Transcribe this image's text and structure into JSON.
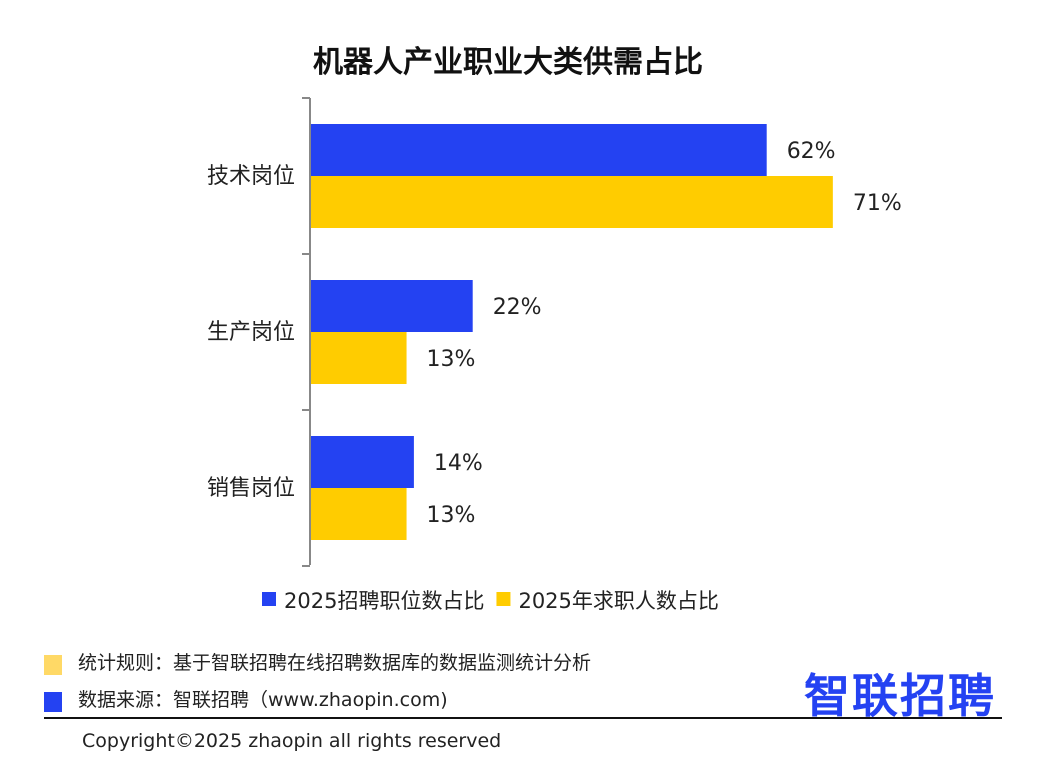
{
  "chart_data": {
    "type": "bar",
    "orientation": "horizontal",
    "title": "机器人产业职业大类供需占比",
    "categories": [
      "技术岗位",
      "生产岗位",
      "销售岗位"
    ],
    "series": [
      {
        "name": "2025招聘职位数占比",
        "values": [
          62,
          22,
          14
        ],
        "labels": [
          "62%",
          "22%",
          "14%"
        ],
        "color": "#2442F2"
      },
      {
        "name": "2025年求职人数占比",
        "values": [
          71,
          13,
          13
        ],
        "labels": [
          "71%",
          "13%",
          "13%"
        ],
        "color": "#FFCC00"
      }
    ],
    "xlim": [
      0,
      100
    ],
    "unit": "%",
    "grid": false,
    "legend_position": "bottom"
  },
  "footer": {
    "rule_text": "统计规则：基于智联招聘在线招聘数据库的数据监测统计分析",
    "source_text": "数据来源：智联招聘（www.zhaopin.com)",
    "rule_color": "#FFD966",
    "source_color": "#2442F2",
    "brand": "智联招聘",
    "brand_color": "#2442F2",
    "copyright": "Copyright©2025 zhaopin all rights reserved"
  }
}
